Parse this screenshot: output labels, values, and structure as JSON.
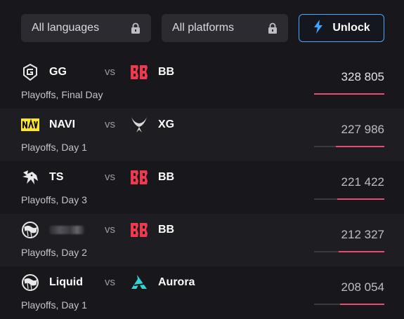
{
  "filters": {
    "languages_label": "All languages",
    "platforms_label": "All platforms",
    "unlock_label": "Unlock"
  },
  "colors": {
    "accent_bar": "#ea4b76",
    "unlock_border": "#4aa8ff"
  },
  "matches": [
    {
      "team_a": "GG",
      "team_a_logo": "gg-logo-icon",
      "vs": "vs",
      "team_b": "BB",
      "team_b_logo": "bb-logo-icon",
      "stage": "Playoffs, Final Day",
      "viewers": "328 805",
      "share": 1.0
    },
    {
      "team_a": "NAVI",
      "team_a_logo": "navi-logo-icon",
      "vs": "vs",
      "team_b": "XG",
      "team_b_logo": "xg-logo-icon",
      "stage": "Playoffs, Day 1",
      "viewers": "227 986",
      "share": 0.69
    },
    {
      "team_a": "TS",
      "team_a_logo": "ts-logo-icon",
      "vs": "vs",
      "team_b": "BB",
      "team_b_logo": "bb-logo-icon",
      "stage": "Playoffs, Day 3",
      "viewers": "221 422",
      "share": 0.67
    },
    {
      "team_a": "",
      "team_a_logo": "liquid-logo-icon",
      "vs": "vs",
      "team_b": "BB",
      "team_b_logo": "bb-logo-icon",
      "stage": "Playoffs, Day 2",
      "viewers": "212 327",
      "share": 0.65
    },
    {
      "team_a": "Liquid",
      "team_a_logo": "liquid-logo-icon",
      "vs": "vs",
      "team_b": "Aurora",
      "team_b_logo": "aurora-logo-icon",
      "stage": "Playoffs, Day 1",
      "viewers": "208 054",
      "share": 0.63
    }
  ]
}
